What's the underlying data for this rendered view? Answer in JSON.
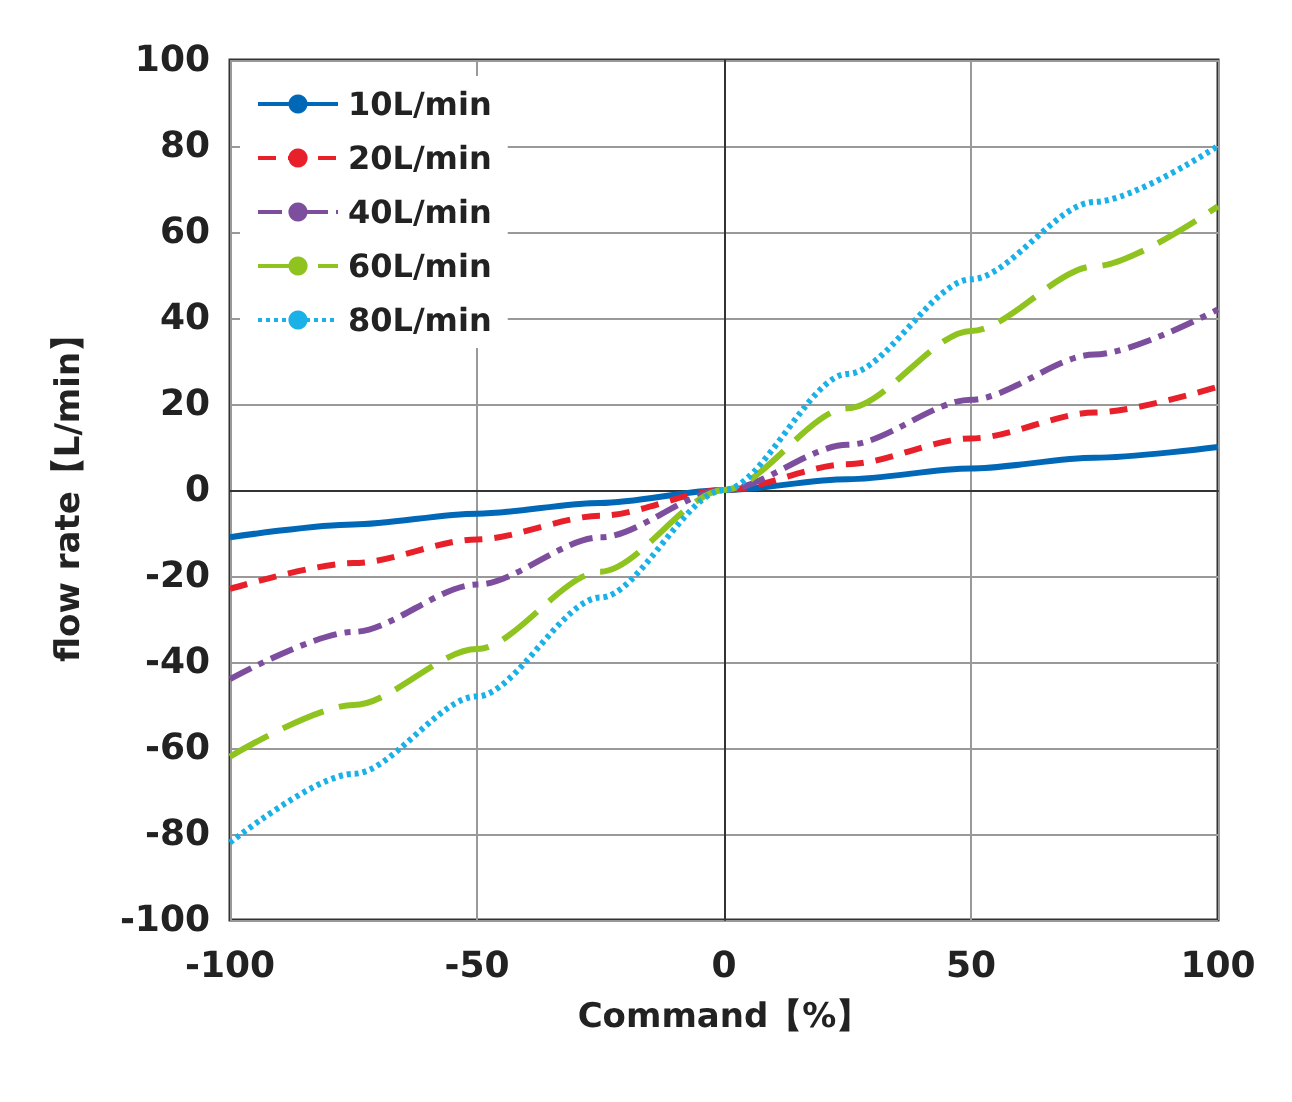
{
  "chart_data": {
    "type": "line",
    "xlabel": "Command【%】",
    "ylabel": "flow rate【L/min】",
    "x": [
      -100,
      -75,
      -50,
      -25,
      0,
      25,
      50,
      75,
      100
    ],
    "series": [
      {
        "name": "10L/min",
        "color": "#0068b7",
        "line_style": "solid",
        "values": [
          -11,
          -8,
          -5.5,
          -3,
          0,
          2.5,
          5,
          7.5,
          10
        ]
      },
      {
        "name": "20L/min",
        "color": "#e8202a",
        "line_style": "dashed",
        "values": [
          -23,
          -17,
          -11.5,
          -6,
          0,
          6,
          12,
          18,
          24
        ]
      },
      {
        "name": "40L/min",
        "color": "#7d4e9e",
        "line_style": "dashdot",
        "values": [
          -44,
          -33,
          -22,
          -11,
          0,
          10.5,
          21,
          31.5,
          42
        ]
      },
      {
        "name": "60L/min",
        "color": "#8fc31f",
        "line_style": "longdash",
        "values": [
          -62,
          -50,
          -37,
          -19,
          0,
          19,
          37,
          52,
          66
        ]
      },
      {
        "name": "80L/min",
        "color": "#1ab0e8",
        "line_style": "dotted",
        "values": [
          -82,
          -66,
          -48,
          -25,
          0,
          27,
          49,
          67,
          80
        ]
      }
    ],
    "xlim": [
      -100,
      100
    ],
    "xticks": [
      -100,
      -50,
      0,
      50,
      100
    ],
    "ylim": [
      -100,
      100
    ],
    "yticks": [
      -100,
      -80,
      -60,
      -40,
      -20,
      0,
      20,
      40,
      60,
      80,
      100
    ],
    "grid": true,
    "legend": "top left",
    "marker": "none"
  }
}
